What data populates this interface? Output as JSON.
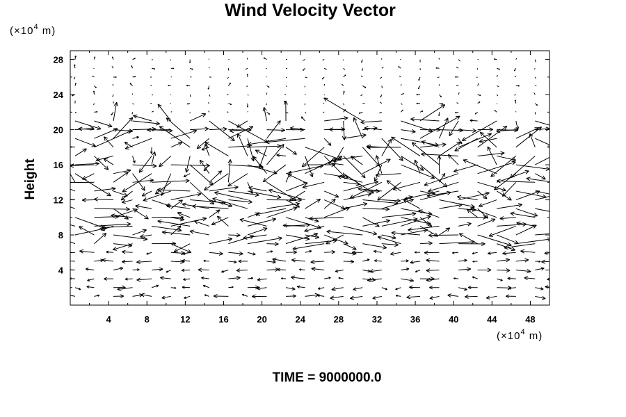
{
  "chart_data": {
    "type": "vector_field",
    "title": "Wind Velocity Vector",
    "ylabel": "Height",
    "x_unit": {
      "prefix": "(×10",
      "exp": "4",
      "suffix": " m)"
    },
    "y_unit": {
      "prefix": "(×10",
      "exp": "4",
      "suffix": " m)"
    },
    "xlim": [
      0,
      50
    ],
    "ylim": [
      0,
      29
    ],
    "x_ticks": [
      4,
      8,
      12,
      16,
      20,
      24,
      28,
      32,
      36,
      40,
      44,
      48
    ],
    "y_ticks": [
      4,
      8,
      12,
      16,
      20,
      24,
      28
    ],
    "grid_x": [
      0.5,
      50.5,
      2
    ],
    "grid_y": [
      1,
      28,
      1
    ],
    "annotation": "TIME = 9000000.0",
    "field_note": "Arrow field approximated: weak winds below ~6 and above ~21, strong mixed winds in the 7–21 layer"
  }
}
